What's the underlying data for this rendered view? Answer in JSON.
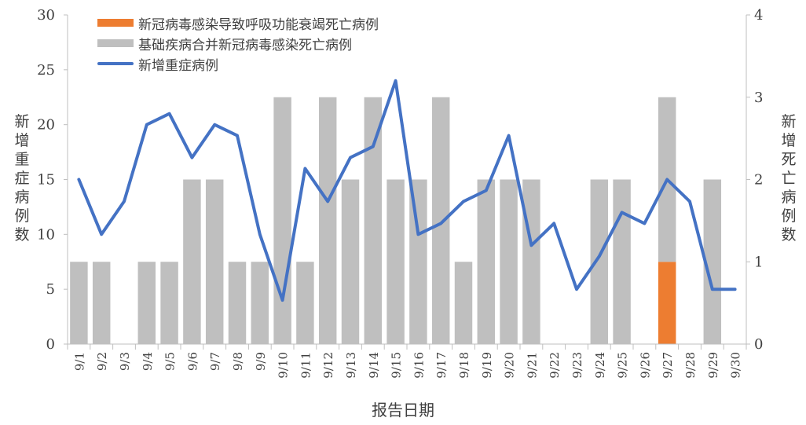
{
  "chart_data": {
    "type": "bar",
    "categories": [
      "9/1",
      "9/2",
      "9/3",
      "9/4",
      "9/5",
      "9/6",
      "9/7",
      "9/8",
      "9/9",
      "9/10",
      "9/11",
      "9/12",
      "9/13",
      "9/14",
      "9/15",
      "9/16",
      "9/17",
      "9/18",
      "9/19",
      "9/20",
      "9/21",
      "9/22",
      "9/23",
      "9/24",
      "9/25",
      "9/26",
      "9/27",
      "9/28",
      "9/29",
      "9/30"
    ],
    "series": [
      {
        "name": "新冠病毒感染导致呼吸功能衰竭死亡病例",
        "type": "bar",
        "axis": "right",
        "color": "#ED7D31",
        "values": [
          0,
          0,
          0,
          0,
          0,
          0,
          0,
          0,
          0,
          0,
          0,
          0,
          0,
          0,
          0,
          0,
          0,
          0,
          0,
          0,
          0,
          0,
          0,
          0,
          0,
          0,
          1,
          0,
          0,
          0
        ]
      },
      {
        "name": "基础疾病合并新冠病毒感染死亡病例",
        "type": "bar",
        "axis": "right",
        "color": "#BFBFBF",
        "values": [
          1,
          1,
          0,
          1,
          1,
          2,
          2,
          1,
          1,
          3,
          1,
          3,
          2,
          3,
          2,
          2,
          3,
          1,
          2,
          2,
          2,
          0,
          0,
          2,
          2,
          0,
          2,
          0,
          2,
          0
        ]
      },
      {
        "name": "新增重症病例",
        "type": "line",
        "axis": "left",
        "color": "#4472C4",
        "values": [
          15,
          10,
          13,
          20,
          21,
          17,
          20,
          19,
          10,
          4,
          16,
          13,
          17,
          18,
          24,
          10,
          11,
          13,
          14,
          19,
          9,
          11,
          5,
          8,
          12,
          11,
          15,
          13,
          5,
          5
        ]
      }
    ],
    "xlabel": "报告日期",
    "ylabel_left": "新增重症病例数",
    "ylabel_right": "新增死亡病例数",
    "ylim_left": [
      0,
      30
    ],
    "yticks_left": [
      "0",
      "5",
      "10",
      "15",
      "20",
      "25",
      "30"
    ],
    "ylim_right": [
      0,
      4
    ],
    "yticks_right": [
      "0",
      "1",
      "2",
      "3",
      "4"
    ],
    "grid": false,
    "legend_position": "top-left"
  }
}
